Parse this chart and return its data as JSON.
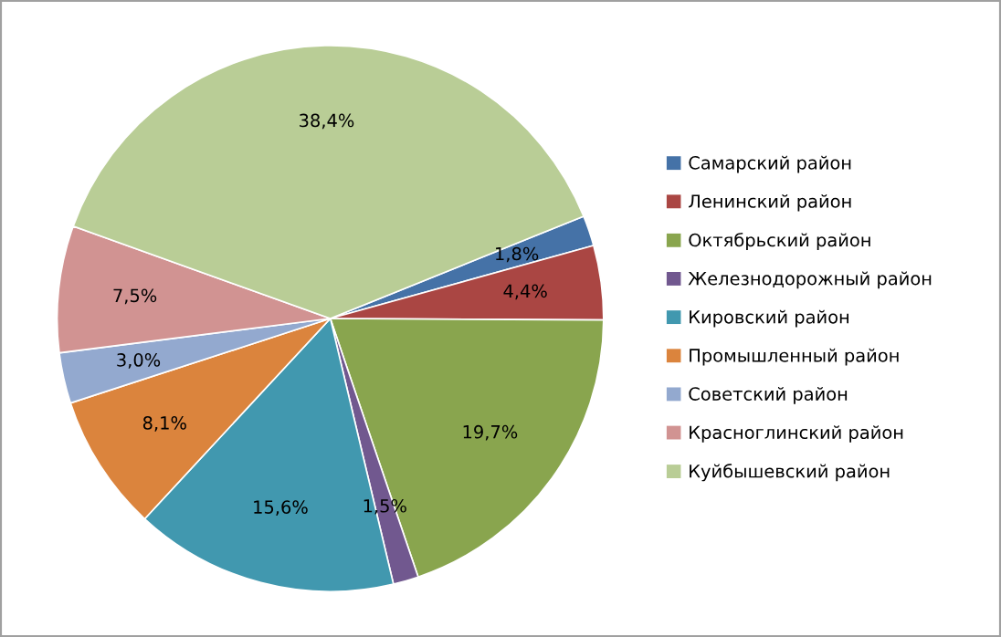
{
  "chart_data": {
    "type": "pie",
    "categories": [
      "Самарский район",
      "Ленинский район",
      "Октябрьский район",
      "Железнодорожный район",
      "Кировский район",
      "Промышленный район",
      "Советский район",
      "Красноглинский район",
      "Куйбышевский район"
    ],
    "values": [
      1.8,
      4.4,
      19.7,
      1.5,
      15.6,
      8.1,
      3.0,
      7.5,
      38.4
    ],
    "value_labels": [
      "1,8%",
      "4,4%",
      "19,7%",
      "1,5%",
      "15,6%",
      "8,1%",
      "3,0%",
      "7,5%",
      "38,4%"
    ],
    "colors": [
      "#4572a7",
      "#aa4643",
      "#89a54e",
      "#71588f",
      "#4198af",
      "#db843d",
      "#93a9cf",
      "#d19392",
      "#b9cd96"
    ],
    "legend": "right"
  }
}
